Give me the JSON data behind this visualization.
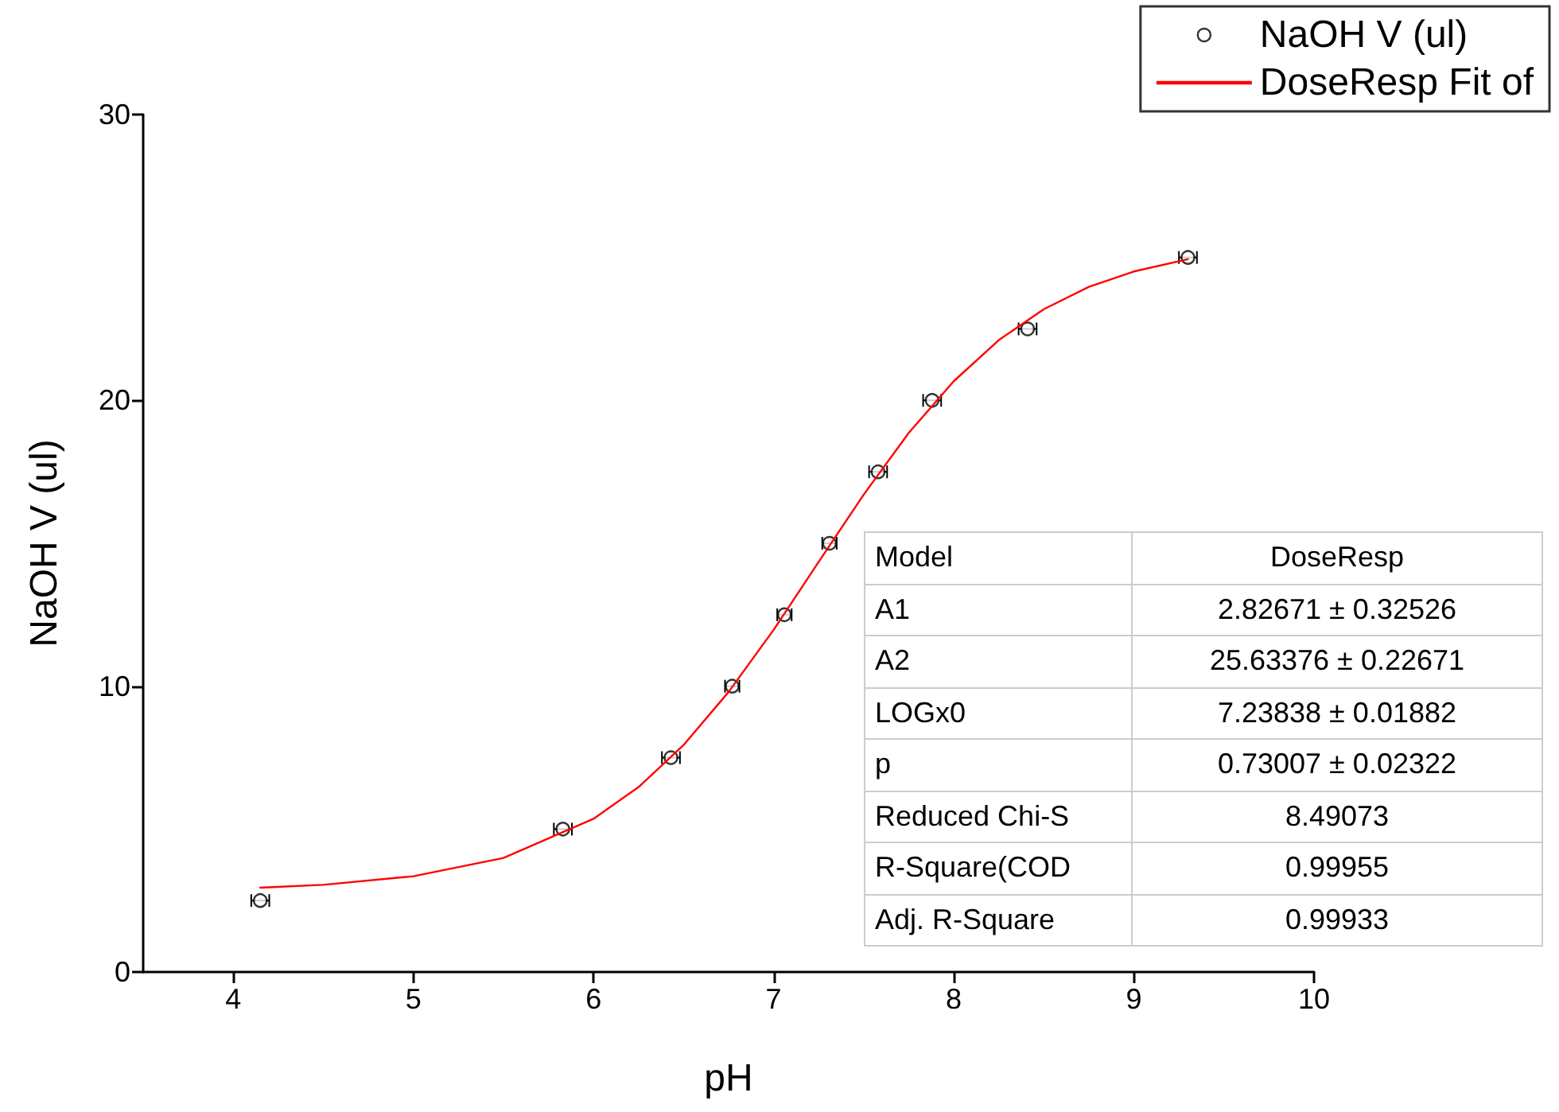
{
  "chart_data": {
    "type": "scatter",
    "xlabel": "pH",
    "ylabel": "NaOH V (ul)",
    "xlim": [
      3.5,
      10
    ],
    "xticks": [
      4,
      5,
      6,
      7,
      8,
      9,
      10
    ],
    "ylim": [
      0,
      30
    ],
    "yticks": [
      0,
      10,
      20,
      30
    ],
    "grid": false,
    "legend": "top right",
    "marker": "circle",
    "series": [
      {
        "name": "NaOH V (ul)",
        "color": "#000000",
        "x": [
          4.15,
          5.83,
          6.43,
          6.77,
          7.06,
          7.31,
          7.58,
          7.88,
          8.41,
          9.3
        ],
        "values": [
          2.5,
          5,
          7.5,
          10,
          12.5,
          15,
          17.5,
          20,
          22.5,
          25
        ],
        "xerrors": [
          0.05,
          0.05,
          0.05,
          0.04,
          0.04,
          0.04,
          0.05,
          0.05,
          0.05,
          0.05
        ]
      },
      {
        "name": "DoseResp Fit of",
        "type": "line",
        "color": "#ff0000",
        "line_style": "solid",
        "marker": "none",
        "x": [
          4.15,
          4.5,
          5,
          5.5,
          6,
          6.25,
          6.5,
          6.75,
          7,
          7.25,
          7.5,
          7.75,
          8,
          8.25,
          8.5,
          8.75,
          9,
          9.3
        ],
        "values": [
          2.95,
          3.05,
          3.35,
          3.99,
          5.36,
          6.47,
          7.94,
          9.8,
          11.97,
          14.35,
          16.7,
          18.86,
          20.67,
          22.11,
          23.19,
          23.97,
          24.51,
          24.94
        ]
      }
    ],
    "annotations": [
      "Model",
      "DoseResp",
      "A1",
      "2.82671 ± 0.32526",
      "A2",
      "25.63376 ± 0.22671",
      "LOGx0",
      "7.23838 ± 0.01882",
      "p",
      "0.73007 ± 0.02322",
      "Reduced Chi-S",
      "8.49073",
      "R-Square(COD",
      "0.99955",
      "Adj. R-Square",
      "0.99933"
    ]
  }
}
